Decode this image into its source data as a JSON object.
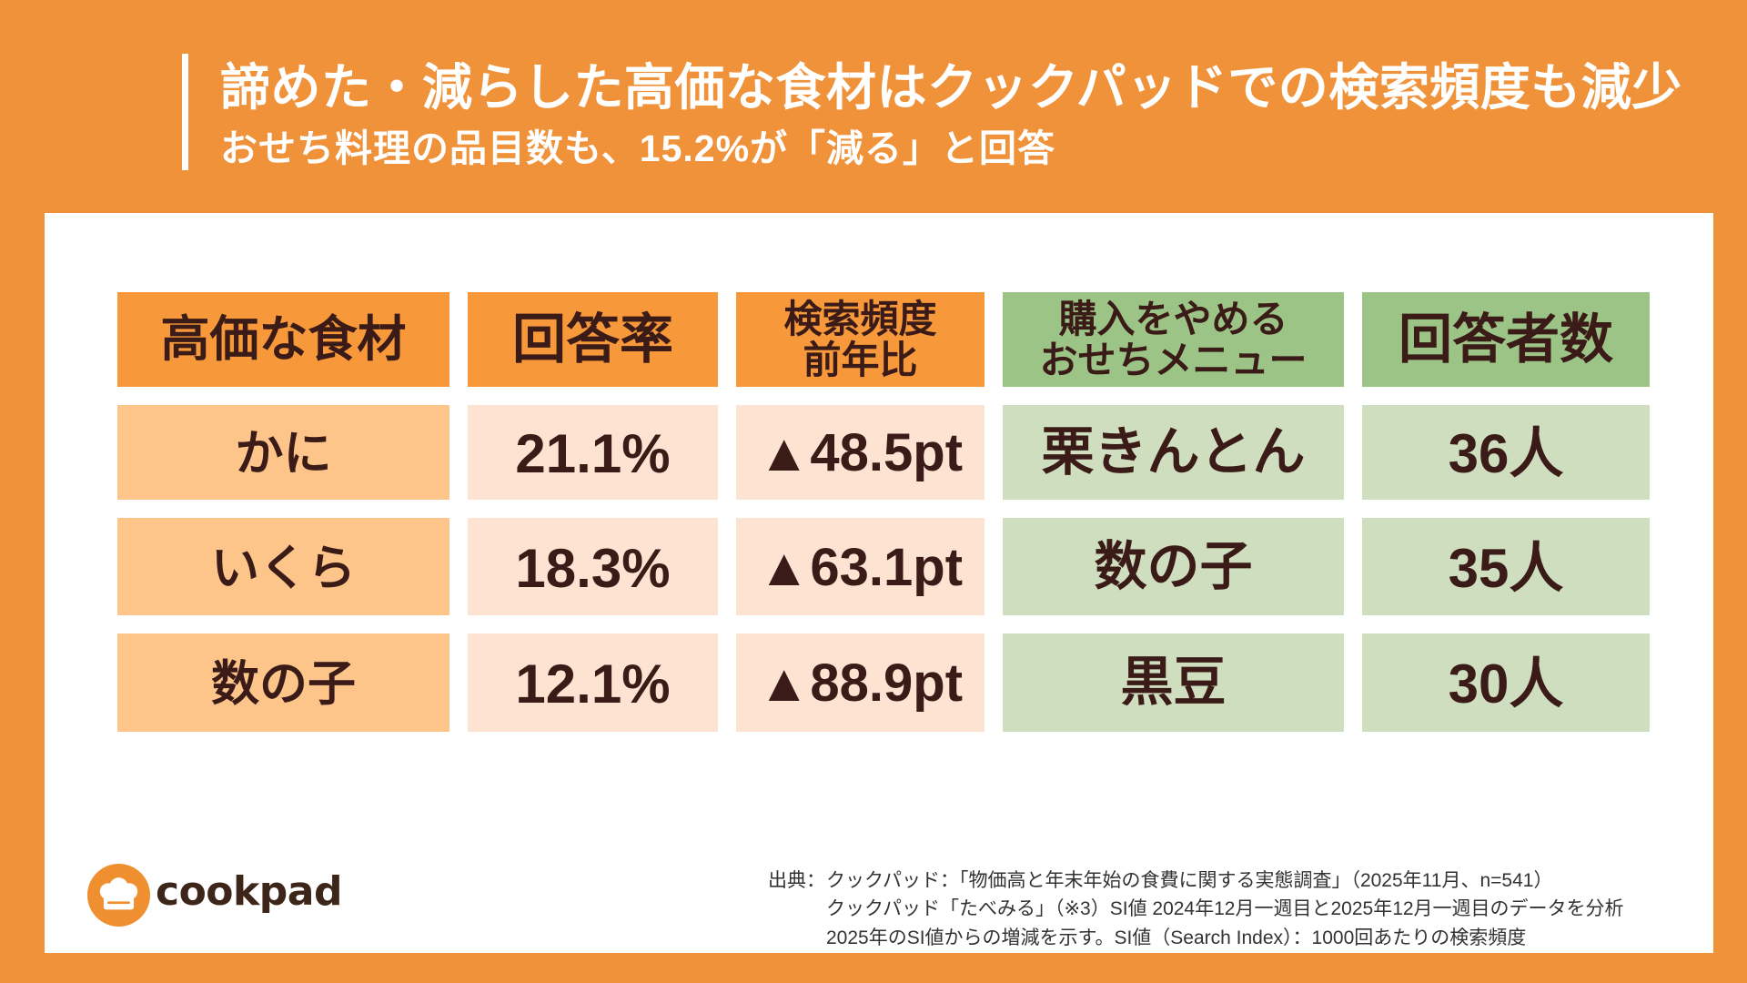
{
  "colors": {
    "background": "#F0923A",
    "accent_bar": "#FFFFFF",
    "title_text": "#FFFFFF",
    "panel": "#FFFFFF",
    "header_orange": "#F7983A",
    "header_green": "#9CC487",
    "cell_item": "#FEC58B",
    "cell_value": "#FDE3D1",
    "cell_menu": "#CEDEBF",
    "text_dark": "#3A1B17",
    "logo_orange": "#EF8F30",
    "logo_text": "#3D2619",
    "source_text": "#333333"
  },
  "header": {
    "title": "諦めた・減らした高価な食材はクックパッドでの検索頻度も減少",
    "subtitle": "おせち料理の品目数も、15.2%が「減る」と回答"
  },
  "chart_data": {
    "type": "table",
    "columns": [
      {
        "lines": [
          "高価な食材"
        ]
      },
      {
        "lines": [
          "回答率"
        ]
      },
      {
        "lines": [
          "検索頻度",
          "前年比"
        ]
      },
      {
        "lines": [
          "購入をやめる",
          "おせちメニュー"
        ]
      },
      {
        "lines": [
          "回答者数"
        ]
      }
    ],
    "rows": [
      [
        "かに",
        "21.1%",
        "▲48.5pt",
        "栗きんとん",
        "36人"
      ],
      [
        "いくら",
        "18.3%",
        "▲63.1pt",
        "数の子",
        "35人"
      ],
      [
        "数の子",
        "12.1%",
        "▲88.9pt",
        "黒豆",
        "30人"
      ]
    ]
  },
  "logo": {
    "icon": "chef-hat-icon",
    "wordmark": "cookpad"
  },
  "source": {
    "label": "出典：",
    "lines": [
      "クックパッド：「物価高と年末年始の食費に関する実態調査」（2025年11月、n=541）",
      "クックパッド「たべみる」（※3）SI値 2024年12月一週目と2025年12月一週目のデータを分析",
      "2025年のSI値からの増減を示す。SI値（Search Index）：1000回あたりの検索頻度"
    ]
  }
}
